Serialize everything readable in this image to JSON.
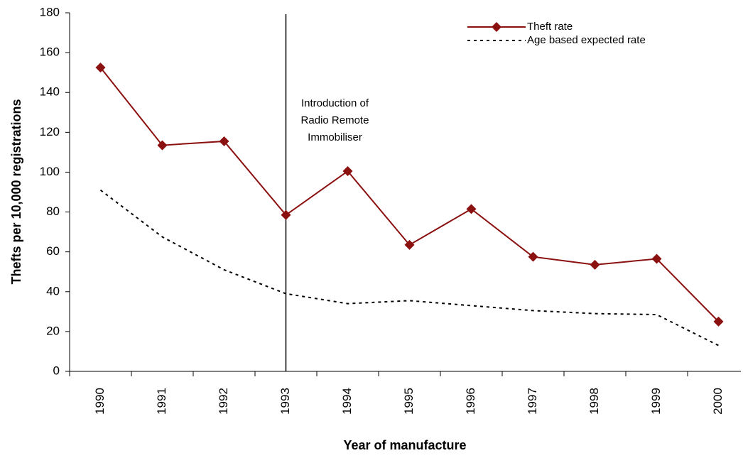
{
  "chart_data": {
    "type": "line",
    "categories": [
      "1990",
      "1991",
      "1992",
      "1993",
      "1994",
      "1995",
      "1996",
      "1997",
      "1998",
      "1999",
      "2000"
    ],
    "series": [
      {
        "name": "Theft rate",
        "color": "#8b1010",
        "style": "solid-diamond",
        "values": [
          152.5,
          113.5,
          115.5,
          78.5,
          100.5,
          63.5,
          81.5,
          57.5,
          53.5,
          56.5,
          25
        ]
      },
      {
        "name": "Age based expected rate",
        "color": "#000000",
        "style": "dotted",
        "values": [
          91,
          67.5,
          51,
          39,
          34,
          35.5,
          33,
          30.5,
          29,
          28.5,
          13
        ]
      }
    ],
    "annotation": {
      "x": "1993",
      "text": [
        "Introduction of",
        "Radio Remote",
        "Immobiliser"
      ]
    },
    "xlabel": "Year of manufacture",
    "ylabel": "Thefts per 10,000 registrations",
    "ylim": [
      0,
      180
    ],
    "yticks": [
      0,
      20,
      40,
      60,
      80,
      100,
      120,
      140,
      160,
      180
    ],
    "legend": "upper right"
  }
}
